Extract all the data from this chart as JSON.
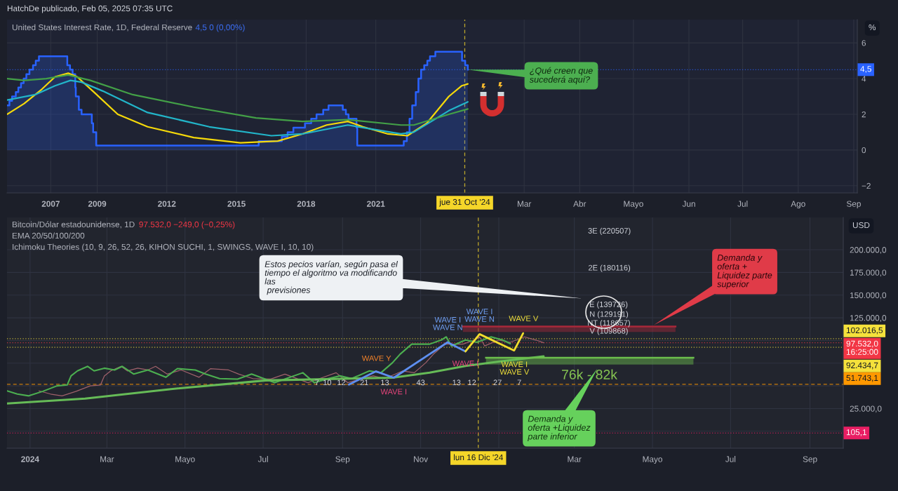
{
  "chart_data": [
    {
      "type": "line",
      "title": "United States Interest Rate, 1D, Federal Reserve",
      "subtitle": "4,5 0 (0,00%)",
      "annotations": [
        "HatchDe publicado, Feb 05, 2025 07:35 UTC",
        "¿Qué creen que\nsucederá aquí?"
      ],
      "series": [
        {
          "type": "area",
          "color": "#2962ff",
          "x": [
            "2005-02-12",
            "2005-03-22",
            "2005-03-22",
            "2005-05-03",
            "2005-05-03",
            "2005-06-30",
            "2005-06-30",
            "2005-08-09",
            "2005-08-09",
            "2005-09-20",
            "2005-09-20",
            "2005-11-01",
            "2005-11-01",
            "2005-12-13",
            "2005-12-13",
            "2006-01-31",
            "2006-01-31",
            "2006-03-28",
            "2006-03-28",
            "2006-05-10",
            "2006-05-10",
            "2006-06-29",
            "2006-06-29",
            "2007-09-18",
            "2007-09-18",
            "2007-10-31",
            "2007-10-31",
            "2007-12-11",
            "2007-12-11",
            "2008-01-22",
            "2008-01-22",
            "2008-01-30",
            "2008-01-30",
            "2008-03-18",
            "2008-03-18",
            "2008-04-30",
            "2008-04-30",
            "2008-10-08",
            "2008-10-08",
            "2008-10-29",
            "2008-10-29",
            "2008-12-16",
            "2008-12-16",
            "2015-12-16",
            "2015-12-16",
            "2016-12-14",
            "2016-12-14",
            "2017-03-15",
            "2017-03-15",
            "2017-06-14",
            "2017-06-14",
            "2017-12-13",
            "2017-12-13",
            "2018-03-21",
            "2018-03-21",
            "2018-06-13",
            "2018-06-13",
            "2018-09-26",
            "2018-09-26",
            "2018-12-19",
            "2018-12-19",
            "2019-07-31",
            "2019-07-31",
            "2019-09-18",
            "2019-09-18",
            "2019-10-30",
            "2019-10-30",
            "2020-03-03",
            "2020-03-03",
            "2020-03-15",
            "2020-03-15",
            "2022-03-16",
            "2022-03-16",
            "2022-05-04",
            "2022-05-04",
            "2022-06-15",
            "2022-06-15",
            "2022-07-27",
            "2022-07-27",
            "2022-09-21",
            "2022-09-21",
            "2022-11-02",
            "2022-11-02",
            "2022-12-14",
            "2022-12-14",
            "2023-02-01",
            "2023-02-01",
            "2023-03-22",
            "2023-03-22",
            "2023-05-03",
            "2023-05-03",
            "2023-07-26",
            "2023-07-26",
            "2024-09-18",
            "2024-09-18",
            "2024-11-07",
            "2024-11-07",
            "2024-12-18",
            "2024-12-18"
          ],
          "values": [
            2.5,
            2.5,
            2.75,
            2.75,
            3.0,
            3.0,
            3.25,
            3.25,
            3.5,
            3.5,
            3.75,
            3.75,
            4.0,
            4.0,
            4.25,
            4.25,
            4.5,
            4.5,
            4.75,
            4.75,
            5.0,
            5.0,
            5.25,
            5.25,
            4.75,
            4.75,
            4.5,
            4.5,
            4.25,
            4.25,
            3.5,
            3.5,
            3.0,
            3.0,
            2.25,
            2.25,
            2.0,
            2.0,
            1.5,
            1.5,
            1.0,
            1.0,
            0.25,
            0.25,
            0.5,
            0.5,
            0.75,
            0.75,
            1.0,
            1.0,
            1.25,
            1.25,
            1.5,
            1.5,
            1.75,
            1.75,
            2.0,
            2.0,
            2.25,
            2.25,
            2.5,
            2.5,
            2.25,
            2.25,
            2.0,
            2.0,
            1.75,
            1.75,
            1.25,
            1.25,
            0.25,
            0.25,
            0.5,
            0.5,
            1.0,
            1.0,
            1.75,
            1.75,
            2.5,
            2.5,
            3.25,
            3.25,
            4.0,
            4.0,
            4.5,
            4.5,
            4.75,
            4.75,
            5.0,
            5.0,
            5.25,
            5.25,
            5.5,
            5.5,
            5.0,
            5.0,
            4.75,
            4.75,
            4.5
          ]
        },
        {
          "color": "#f5d90a",
          "x": [
            "2005-02-12",
            "2005-11-09",
            "2006-08-13",
            "2007-03-10",
            "2007-10-03",
            "2008-02-20",
            "2008-11-23",
            "2009-11-21",
            "2011-03-05",
            "2013-02-27",
            "2015-03-05",
            "2016-10-09",
            "2017-11-02",
            "2018-11-19",
            "2019-10-18",
            "2020-06-12",
            "2021-07-11",
            "2022-05-13",
            "2023-03-13",
            "2024-02-23",
            "2024-09-15",
            "2024-12-18"
          ],
          "values": [
            2.0,
            2.6,
            3.4,
            4.1,
            4.3,
            4.1,
            3.2,
            2.0,
            1.3,
            0.7,
            0.4,
            0.5,
            0.9,
            1.4,
            1.6,
            1.3,
            0.9,
            0.8,
            1.5,
            3.0,
            3.6,
            3.7
          ]
        },
        {
          "color": "#22b5c9",
          "x": [
            "2005-02-12",
            "2006-05-01",
            "2007-03-10",
            "2007-11-07",
            "2008-04-29",
            "2009-03-31",
            "2011-03-05",
            "2013-10-30",
            "2016-07-04",
            "2017-11-02",
            "2019-10-18",
            "2020-09-16",
            "2022-01-30",
            "2022-08-22",
            "2024-02-23",
            "2024-12-18"
          ],
          "values": [
            2.8,
            3.1,
            3.6,
            3.9,
            3.8,
            3.3,
            2.1,
            1.3,
            0.8,
            0.9,
            1.4,
            1.2,
            0.9,
            1.0,
            2.2,
            2.7
          ]
        },
        {
          "color": "#43a047",
          "x": [
            "2005-02-12",
            "2005-11-09",
            "2006-10-22",
            "2007-10-03",
            "2008-09-15",
            "2010-07-14",
            "2013-02-27",
            "2015-11-04",
            "2017-11-02",
            "2019-10-18",
            "2022-01-30",
            "2022-08-22",
            "2024-02-23",
            "2024-12-18"
          ],
          "values": [
            4.0,
            3.9,
            4.0,
            4.2,
            3.9,
            3.1,
            2.4,
            1.8,
            1.6,
            1.7,
            1.4,
            1.4,
            2.0,
            2.3
          ]
        }
      ],
      "xlim": [
        "2005-02-12",
        "2024-12-31"
      ],
      "xticks": [
        {
          "value": "2007-01-01",
          "label": "2007"
        },
        {
          "value": "2009-01-01",
          "label": "2009"
        },
        {
          "value": "2012-01-01",
          "label": "2012"
        },
        {
          "value": "2015-01-01",
          "label": "2015"
        },
        {
          "value": "2018-01-01",
          "label": "2018"
        },
        {
          "value": "2021-01-01",
          "label": "2021"
        }
      ],
      "ylim": [
        -2.4,
        7.3
      ],
      "yticks": [
        -2,
        0,
        2,
        4,
        6
      ],
      "tick_labels": "x",
      "ref_lines": [
        {
          "axis": "x",
          "value": "2024-10-31",
          "label": "jue 31 Oct '24",
          "color": "#f5d629",
          "line_style": "dashed"
        },
        {
          "axis": "y",
          "value": 4.5,
          "color": "#2962ff",
          "line_style": "dotted"
        }
      ],
      "grid": true
    },
    {
      "type": "line",
      "ylabel": "%",
      "xlim": [
        "2025-01-29",
        "2025-09-03"
      ],
      "xticks": [
        {
          "value": "2025-03-01",
          "label": "Mar"
        },
        {
          "value": "2025-04-01",
          "label": "Abr"
        },
        {
          "value": "2025-05-01",
          "label": "Mayo"
        },
        {
          "value": "2025-06-01",
          "label": "Jun"
        },
        {
          "value": "2025-07-01",
          "label": "Jul"
        },
        {
          "value": "2025-08-01",
          "label": "Ago"
        },
        {
          "value": "2025-09-01",
          "label": "Sep"
        }
      ],
      "ylim": [
        -2.4,
        7.3
      ],
      "yticks": [
        {
          "value": -2,
          "label": "−2"
        },
        0,
        2,
        4,
        6
      ],
      "ref_lines": [
        {
          "axis": "y",
          "value": 4.5,
          "label": "4,5",
          "color": "#2962ff",
          "line_style": "dotted"
        }
      ],
      "grid": true
    },
    {
      "type": "line",
      "title": "Bitcoin/Dólar estadounidense, 1D",
      "subtitle": "97.532,0 −249,0 (−0,25%)",
      "ylabel": "USD",
      "annotations": [
        "EMA 20/50/100/200",
        "Ichimoku Theories (10, 9, 26, 52, 26, KIHON SUCHI, 1, SWINGS, WAVE I, 10, 10)",
        "Estos pecios varían, según pasa el\ntiempo el algoritmo va modificando\nlas\n previsiones",
        "Demanda y\noferta +\nLiquidez parte\nsuperior",
        "Demanda y\noferta +Liquidez\nparte inferior",
        "76k - 82k",
        "3E (220507)",
        "2E (180116)",
        "E (139726)",
        "N (129191)",
        "WAVE Y",
        "WAVE I",
        "WAVE I\nWAVE N",
        "WAVE V",
        "WAVE I\nWAVE V",
        "105,1",
        {
          "text": "NT (118657)",
          "x": "2025-03-28",
          "y": 118657
        },
        {
          "text": "V (109868)",
          "x": "2025-03-28",
          "y": 109868
        },
        {
          "text": "WAVE I\nWAVE N",
          "x": "2024-12-17",
          "y": 127000
        },
        {
          "text": "WAVE I",
          "x": "2024-12-06",
          "y": 74000
        },
        {
          "text": "7",
          "x": "2024-08-12",
          "y": 53000
        },
        {
          "text": "10",
          "x": "2024-08-20",
          "y": 53000
        },
        {
          "text": "12",
          "x": "2024-08-31",
          "y": 53000
        },
        {
          "text": "21",
          "x": "2024-09-18",
          "y": 53000
        },
        {
          "text": "13",
          "x": "2024-10-04",
          "y": 53000
        },
        {
          "text": "43",
          "x": "2024-11-01",
          "y": 53000
        },
        {
          "text": "13",
          "x": "2024-11-29",
          "y": 53000
        },
        {
          "text": "12",
          "x": "2024-12-11",
          "y": 53000
        },
        {
          "text": "27",
          "x": "2024-12-31",
          "y": 53000
        },
        {
          "text": "7",
          "x": "2025-01-17",
          "y": 53000
        }
      ],
      "series": [
        {
          "color": "#a0616b",
          "x": [
            "2024-01-08",
            "2024-01-17",
            "2024-01-26",
            "2024-02-06",
            "2024-02-17",
            "2024-02-25",
            "2024-02-28",
            "2024-03-04",
            "2024-03-12",
            "2024-03-17",
            "2024-03-25",
            "2024-04-02",
            "2024-04-08",
            "2024-04-17",
            "2024-04-28",
            "2024-05-12",
            "2024-05-21",
            "2024-06-04",
            "2024-06-12",
            "2024-06-23",
            "2024-07-07",
            "2024-07-18",
            "2024-08-05",
            "2024-08-14",
            "2024-08-27",
            "2024-09-05",
            "2024-09-16",
            "2024-09-25",
            "2024-10-04",
            "2024-10-18",
            "2024-10-27",
            "2024-11-05",
            "2024-11-11",
            "2024-11-20",
            "2024-12-04",
            "2024-12-13",
            "2024-12-17",
            "2024-12-21",
            "2025-01-01",
            "2025-01-10",
            "2025-01-21",
            "2025-01-30",
            "2025-02-05"
          ],
          "values": [
            44500,
            41000,
            39000,
            44000,
            50000,
            51000,
            61000,
            66500,
            71500,
            66500,
            69500,
            67500,
            71500,
            63000,
            67500,
            59500,
            69000,
            67500,
            63000,
            58000,
            57500,
            63000,
            53500,
            58000,
            64500,
            53500,
            58000,
            61000,
            58000,
            66500,
            64500,
            75500,
            85000,
            96000,
            96000,
            100500,
            104000,
            94000,
            100500,
            98000,
            104000,
            100500,
            97500
          ]
        },
        {
          "color": "#4caf50",
          "x": [
            "2023-12-14",
            "2023-12-22",
            "2023-12-31",
            "2024-01-11",
            "2024-01-22",
            "2024-01-30",
            "2024-02-02",
            "2024-02-07",
            "2024-02-15",
            "2024-02-20",
            "2024-02-28",
            "2024-03-07",
            "2024-03-13",
            "2024-03-22",
            "2024-04-02",
            "2024-04-16",
            "2024-04-25",
            "2024-05-09",
            "2024-05-17",
            "2024-05-28",
            "2024-06-11",
            "2024-06-22",
            "2024-07-10",
            "2024-07-19",
            "2024-08-01",
            "2024-08-10",
            "2024-08-21",
            "2024-08-30",
            "2024-09-08",
            "2024-09-22",
            "2024-10-01",
            "2024-10-10",
            "2024-10-16",
            "2024-10-25",
            "2024-11-08",
            "2024-11-17",
            "2024-11-21",
            "2024-11-25",
            "2024-12-06",
            "2024-12-15",
            "2024-12-26",
            "2025-01-04",
            "2025-01-10"
          ],
          "values": [
            44500,
            41000,
            39000,
            44000,
            50000,
            51000,
            61000,
            66500,
            71500,
            66500,
            69500,
            67500,
            71500,
            63000,
            67500,
            59500,
            69000,
            67500,
            63000,
            58000,
            57500,
            63000,
            53500,
            58000,
            64500,
            53500,
            58000,
            61000,
            58000,
            66500,
            64500,
            75500,
            85000,
            96000,
            96000,
            100500,
            104000,
            94000,
            100500,
            98000,
            104000,
            100500,
            96500
          ]
        },
        {
          "color": "#66bb57",
          "x": [
            "2023-12-14",
            "2024-02-13",
            "2024-04-20",
            "2024-07-03",
            "2024-10-10",
            "2024-11-08",
            "2024-12-06",
            "2025-01-02",
            "2025-02-05"
          ],
          "values": [
            30500,
            36000,
            46500,
            56000,
            59000,
            64500,
            72000,
            77000,
            82500
          ]
        },
        {
          "color": "#5e8ff0",
          "x": [
            "2024-09-06",
            "2024-09-27",
            "2024-10-11",
            "2024-11-22",
            "2024-12-06"
          ],
          "values": [
            51500,
            66000,
            59000,
            98000,
            88000
          ]
        },
        {
          "color": "#f2dc2c",
          "x": [
            "2024-12-06",
            "2024-12-17",
            "2025-01-13",
            "2025-01-20"
          ],
          "values": [
            88000,
            107000,
            89000,
            108000
          ]
        },
        {
          "color": "#a8283a",
          "x": [
            "2024-12-04",
            "2025-05-19"
          ],
          "values": [
            115500,
            115500
          ],
          "lower": [
            109500,
            109500
          ],
          "upper": [
            115500,
            115500
          ]
        },
        {
          "color": "#6cbf4c",
          "x": [
            "2024-12-22",
            "2025-06-02"
          ],
          "values": [
            81000,
            81000
          ],
          "lower": [
            73500,
            73500
          ],
          "upper": [
            81000,
            81000
          ]
        }
      ],
      "xlim": [
        "2023-12-14",
        "2025-09-27"
      ],
      "xticks": [
        {
          "value": "2024-01-01",
          "label": "2024"
        },
        {
          "value": "2024-03-01",
          "label": "Mar"
        },
        {
          "value": "2024-05-01",
          "label": "Mayo"
        },
        {
          "value": "2024-07-01",
          "label": "Jul"
        },
        {
          "value": "2024-09-01",
          "label": "Sep"
        },
        {
          "value": "2024-11-01",
          "label": "Nov"
        },
        {
          "value": "2025-01-01",
          "label": null
        },
        {
          "value": "2025-03-01",
          "label": "Mar"
        },
        {
          "value": "2025-05-01",
          "label": "Mayo"
        },
        {
          "value": "2025-07-01",
          "label": "Jul"
        },
        {
          "value": "2025-09-01",
          "label": "Sep"
        }
      ],
      "ylim": [
        -18700,
        235600
      ],
      "yticks": [
        {
          "value": 0,
          "label": null
        },
        {
          "value": 25000,
          "label": "25.000,0"
        },
        {
          "value": 50000,
          "label": null
        },
        {
          "value": 75000,
          "label": null
        },
        {
          "value": 100000,
          "label": null
        },
        {
          "value": 125000,
          "label": "125.000,0"
        },
        {
          "value": 150000,
          "label": "150.000,0"
        },
        {
          "value": 175000,
          "label": "175.000,0"
        },
        {
          "value": 200000,
          "label": "200.000,0"
        }
      ],
      "ref_lines": [
        {
          "axis": "x",
          "value": "2024-12-16",
          "label": "lun 16 Dic '24",
          "color": "#f5d629",
          "line_style": "dashed"
        },
        {
          "axis": "y",
          "value": 102016.5,
          "label": "102.016,5",
          "color": "#f5e13b",
          "line_style": "dotted"
        },
        {
          "axis": "y",
          "value": 97532.0,
          "label": "97.532,0\n16:25:00",
          "color": "#f23645",
          "line_style": "dotted"
        },
        {
          "axis": "y",
          "value": 92434.7,
          "label": "92.434,7",
          "color": "#f5e13b",
          "line_style": "dotted"
        },
        {
          "axis": "y",
          "value": 51743.1,
          "label": "51.743,1",
          "color": "#ff9800",
          "line_style": "dashed"
        },
        {
          "axis": "y",
          "value": -2000,
          "color": "#e91e63",
          "line_style": "dotted"
        }
      ],
      "grid": true
    }
  ]
}
